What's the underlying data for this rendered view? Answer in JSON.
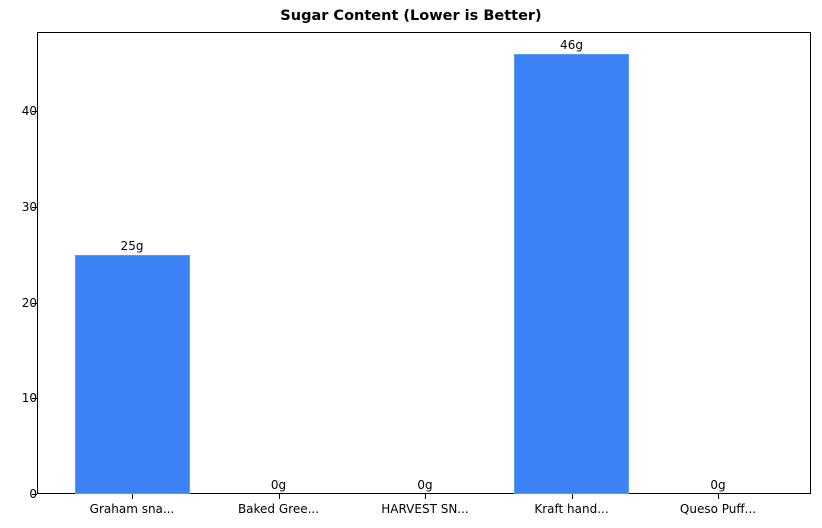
{
  "chart_data": {
    "type": "bar",
    "title": "Sugar Content (Lower is Better)",
    "categories": [
      "Graham sna...",
      "Baked Gree...",
      "HARVEST SN...",
      "Kraft hand...",
      "Queso Puff..."
    ],
    "values": [
      25,
      0,
      0,
      46,
      0
    ],
    "value_labels": [
      "25g",
      "0g",
      "0g",
      "46g",
      "0g"
    ],
    "xlabel": "",
    "ylabel": "",
    "ylim": [
      0,
      48.3
    ],
    "yticks": [
      0,
      10,
      20,
      30,
      40
    ],
    "grid": false,
    "bar_color": "#3b82f6"
  }
}
